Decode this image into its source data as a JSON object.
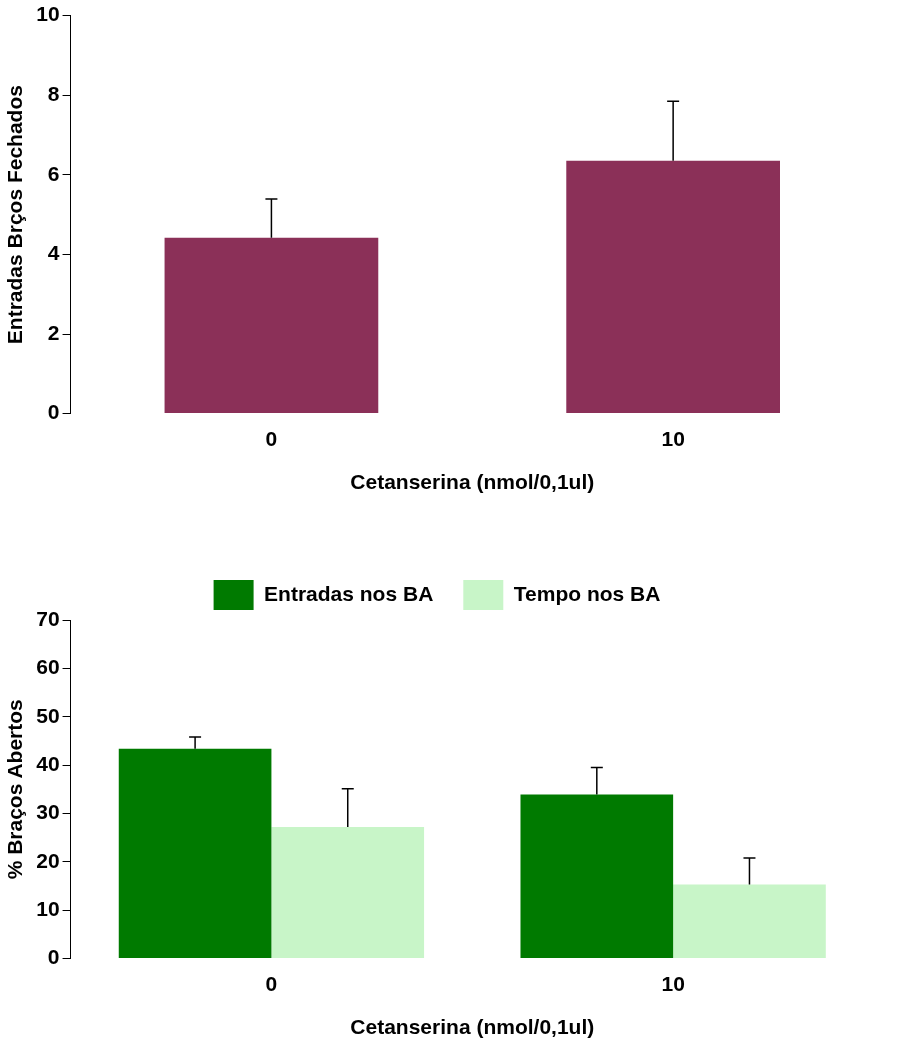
{
  "chart_data": [
    {
      "type": "bar",
      "xlabel": "Cetanserina (nmol/0,1ul)",
      "ylabel": "Entradas Brços Fechados",
      "categories": [
        "0",
        "10"
      ],
      "values": [
        4.42,
        6.35
      ],
      "errors": [
        [
          4.42,
          5.39
        ],
        [
          6.35,
          7.85
        ]
      ],
      "color": "#8b3058",
      "ylim": [
        0,
        10
      ],
      "yticks": [
        0,
        2,
        4,
        6,
        8,
        10
      ],
      "grid": false,
      "legend": false
    },
    {
      "type": "bar",
      "xlabel": "Cetanserina (nmol/0,1ul)",
      "ylabel": "% Braços Abertos",
      "categories": [
        "0",
        "10"
      ],
      "series": [
        {
          "name": "Entradas nos BA",
          "color": "#007a00",
          "values": [
            43.4,
            33.9
          ],
          "errors": [
            [
              43.4,
              45.8
            ],
            [
              33.9,
              39.5
            ]
          ]
        },
        {
          "name": "Tempo nos BA",
          "color": "#c8f5c8",
          "values": [
            27.2,
            15.3
          ],
          "errors": [
            [
              27.2,
              35.1
            ],
            [
              15.3,
              20.8
            ]
          ]
        }
      ],
      "ylim": [
        0,
        70
      ],
      "yticks": [
        0,
        10,
        20,
        30,
        40,
        50,
        60,
        70
      ],
      "grid": false,
      "legend": "top"
    }
  ]
}
